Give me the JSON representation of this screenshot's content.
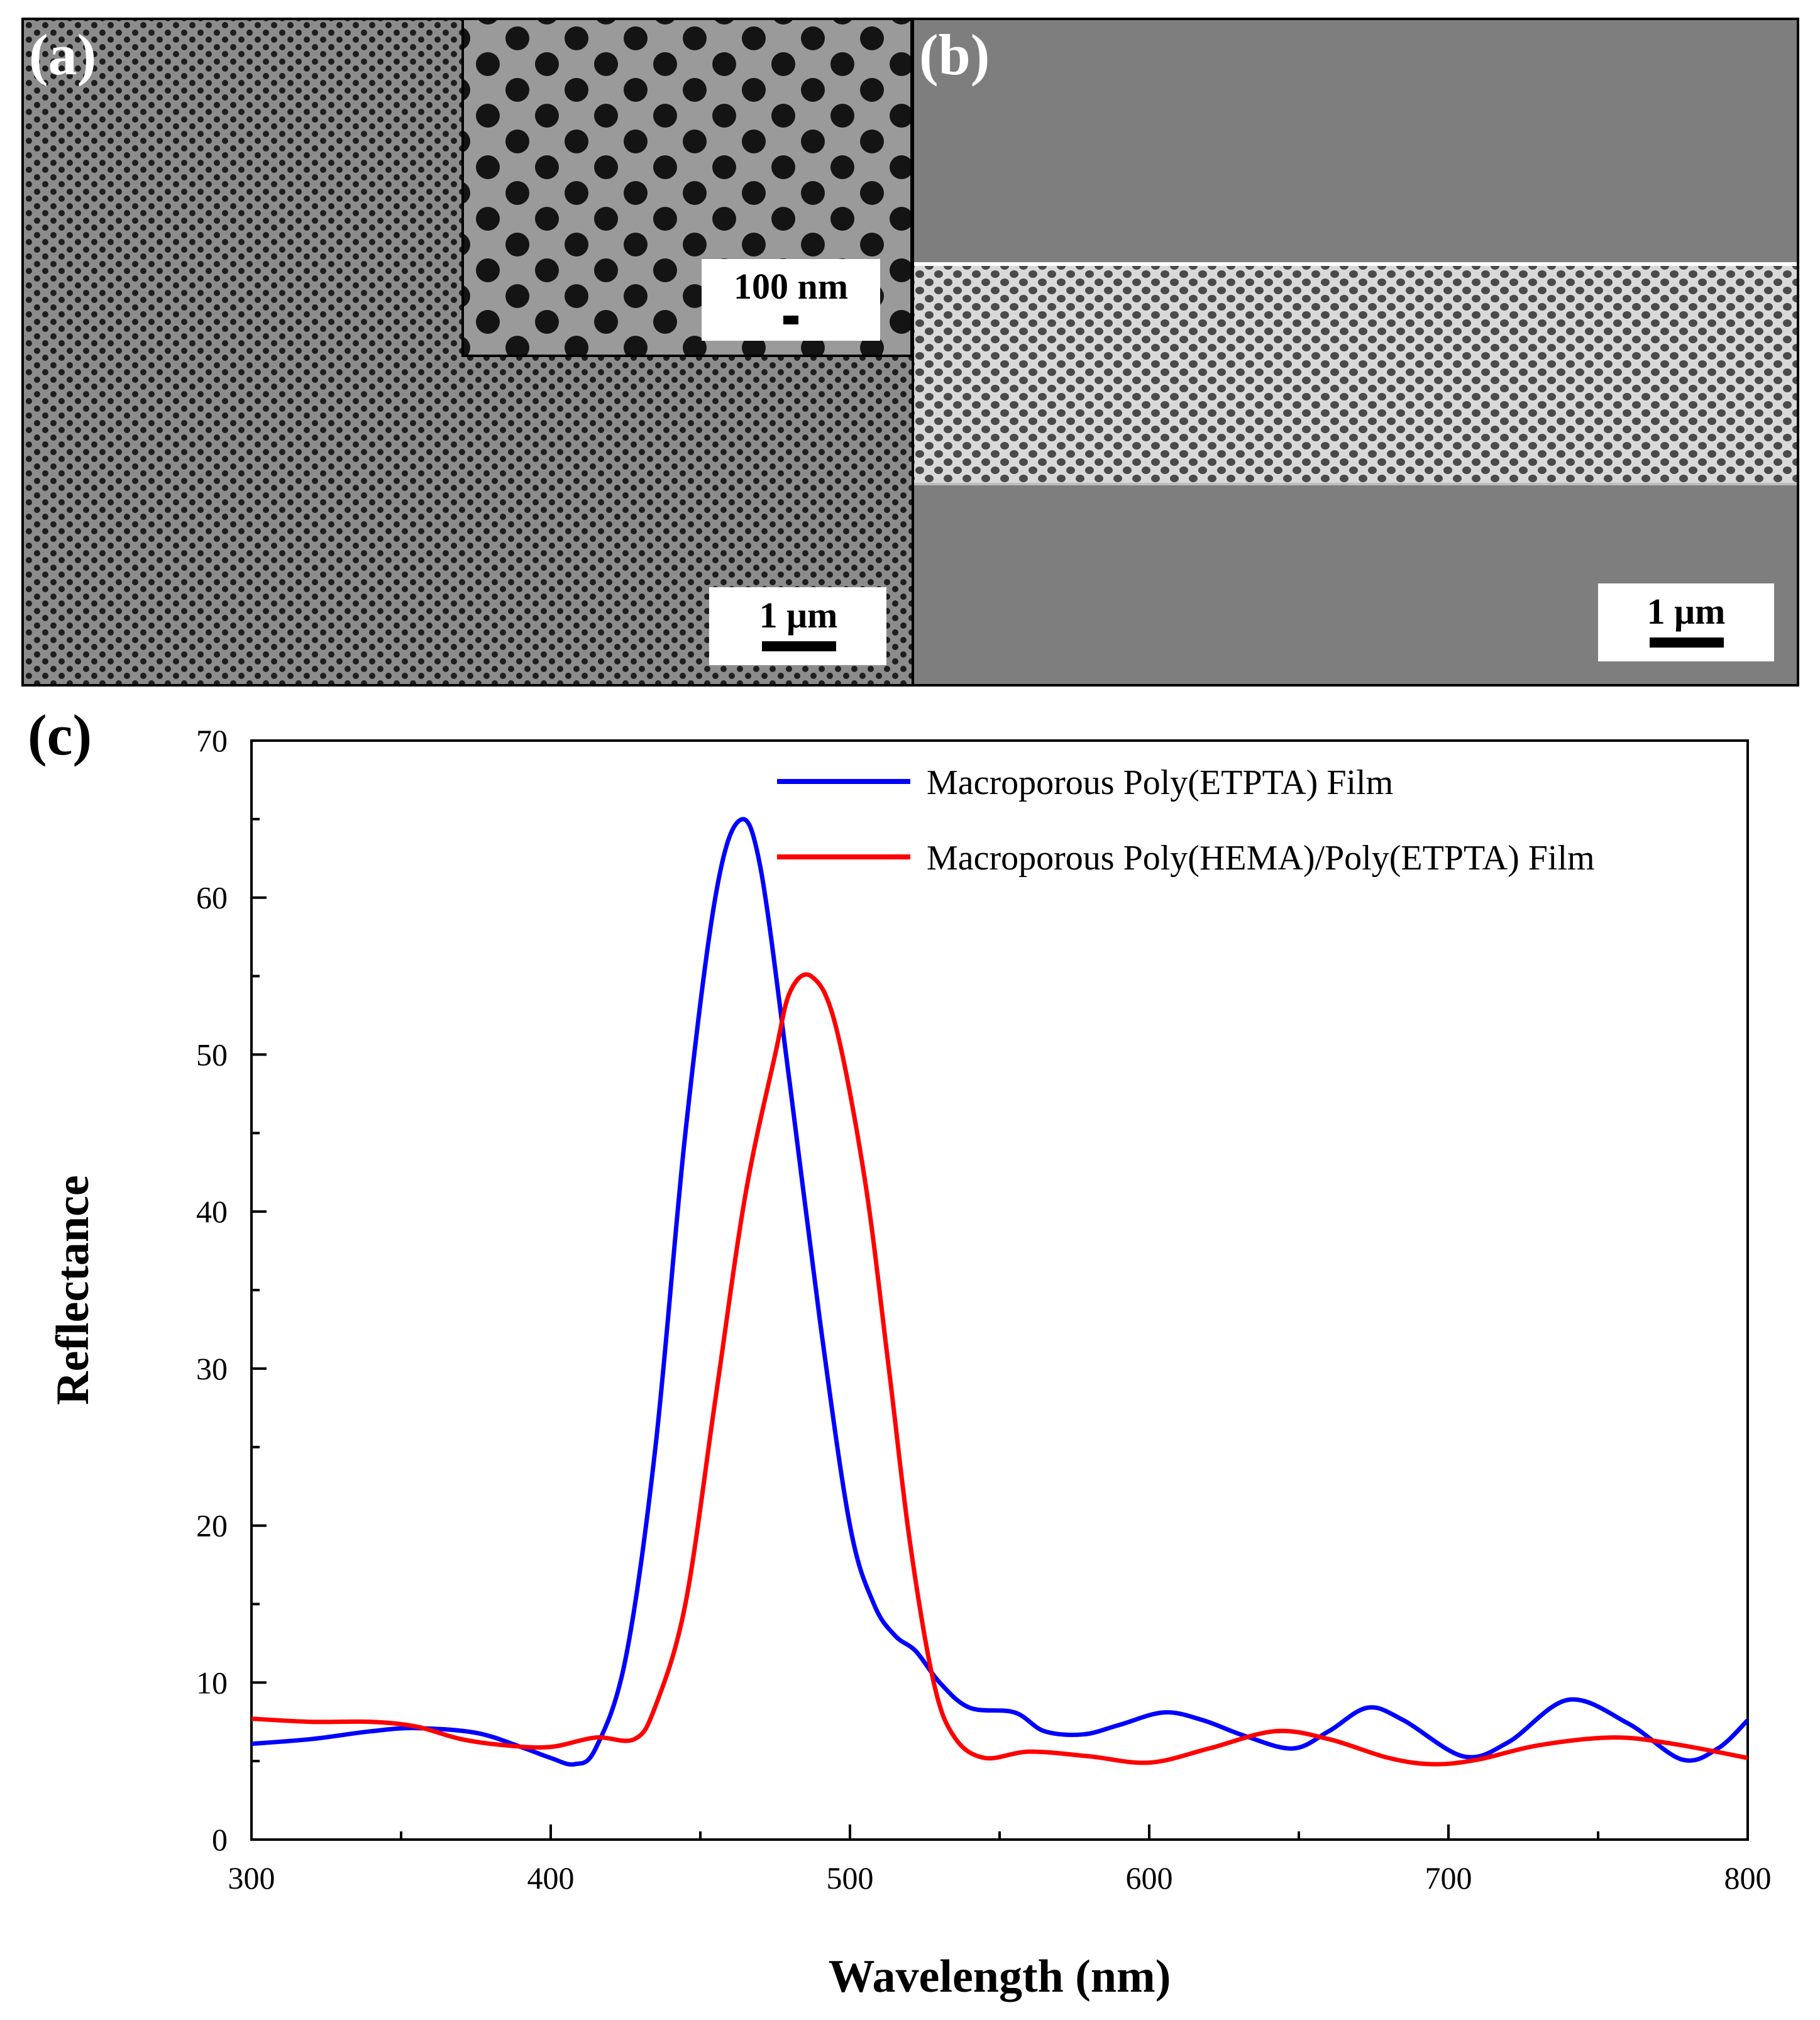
{
  "panels": {
    "a": {
      "label": "(a)",
      "scalebar": "1 μm",
      "inset_scalebar": "100 nm"
    },
    "b": {
      "label": "(b)",
      "scalebar": "1 μm"
    },
    "c": {
      "label": "(c)"
    }
  },
  "colors": {
    "blue": "#0000ff",
    "red": "#ff0000",
    "sem_gray": "#8a8a8a"
  },
  "chart_data": {
    "type": "line",
    "title": "",
    "xlabel": "Wavelength (nm)",
    "ylabel": "Reflectance",
    "xlim": [
      300,
      800
    ],
    "ylim": [
      0,
      70
    ],
    "x_ticks": [
      300,
      400,
      500,
      600,
      700,
      800
    ],
    "y_ticks": [
      0,
      10,
      20,
      30,
      40,
      50,
      60,
      70
    ],
    "legend_position": "top-right",
    "series": [
      {
        "name": "Macroporous Poly(ETPTA) Film",
        "color": "#0000ff",
        "x": [
          300,
          320,
          340,
          355,
          375,
          390,
          400,
          408,
          415,
          425,
          435,
          445,
          455,
          463,
          470,
          480,
          490,
          500,
          508,
          515,
          522,
          530,
          540,
          555,
          565,
          578,
          590,
          605,
          618,
          632,
          648,
          660,
          673,
          685,
          705,
          720,
          740,
          760,
          778,
          790,
          800
        ],
        "y": [
          6.1,
          6.4,
          6.9,
          7.1,
          6.8,
          5.9,
          5.2,
          4.8,
          5.8,
          11.5,
          25,
          45,
          60,
          64.9,
          62,
          48,
          33,
          20,
          15,
          13,
          12,
          10,
          8.4,
          8.1,
          6.9,
          6.7,
          7.3,
          8.1,
          7.6,
          6.6,
          5.8,
          6.9,
          8.4,
          7.6,
          5.3,
          6.2,
          8.9,
          7.4,
          5.1,
          5.8,
          7.6
        ]
      },
      {
        "name": "Macroporous Poly(HEMA)/Poly(ETPTA) Film",
        "color": "#ff0000",
        "x": [
          300,
          320,
          340,
          355,
          370,
          385,
          400,
          415,
          428,
          435,
          445,
          455,
          465,
          475,
          480,
          487,
          495,
          505,
          513,
          520,
          528,
          535,
          545,
          560,
          580,
          600,
          620,
          642,
          660,
          680,
          695,
          710,
          730,
          755,
          775,
          800
        ],
        "y": [
          7.7,
          7.5,
          7.5,
          7.2,
          6.4,
          6.0,
          5.9,
          6.5,
          6.4,
          8.5,
          15,
          28,
          41,
          50,
          54,
          55,
          52,
          42,
          30,
          19,
          10,
          6.5,
          5.2,
          5.6,
          5.3,
          4.9,
          5.8,
          6.9,
          6.4,
          5.2,
          4.8,
          5.1,
          6.0,
          6.5,
          6.1,
          5.2
        ]
      }
    ]
  }
}
